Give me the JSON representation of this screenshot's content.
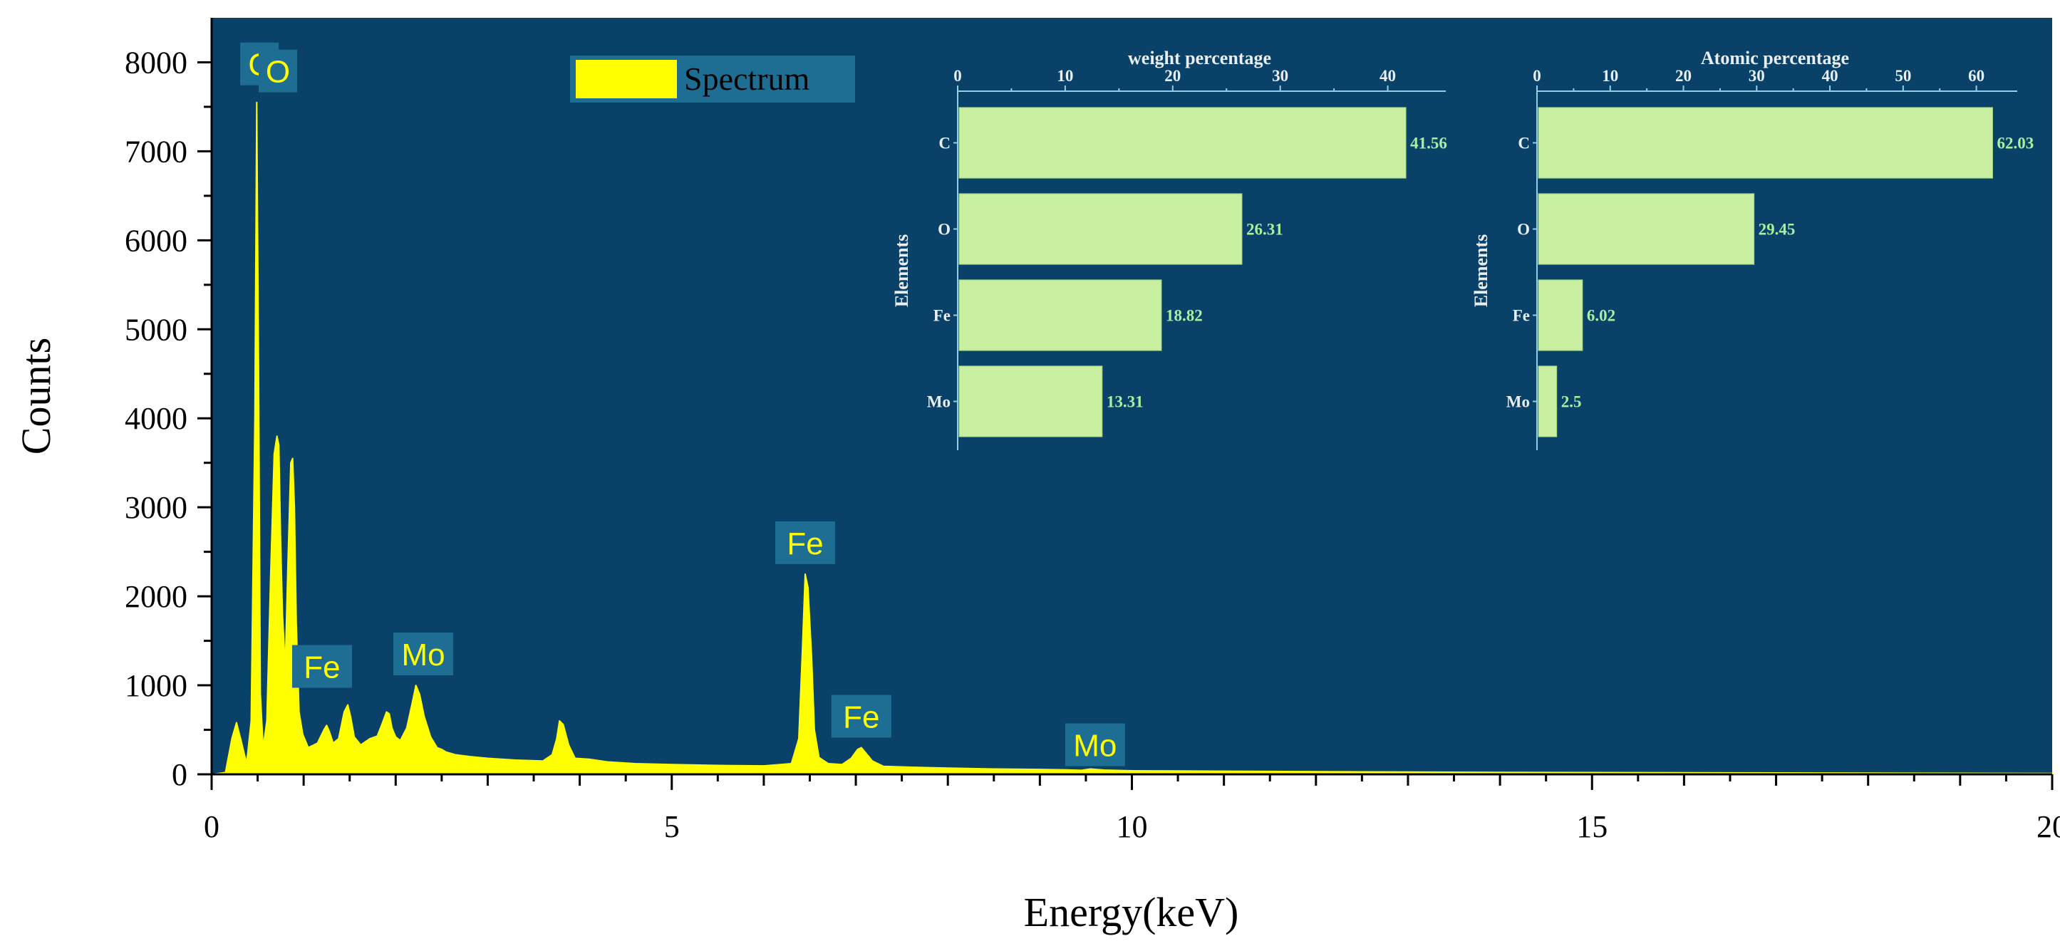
{
  "colors": {
    "plot_background": "#0a4169",
    "spectrum_fill": "#ffff00",
    "label_box": "#1e6e94",
    "inset_bar": "#c8f0a0",
    "inset_value": "#a8f0a0",
    "page_background": "#ffffff"
  },
  "chart_data": [
    {
      "type": "area",
      "title": "",
      "xlabel": "Energy(keV)",
      "ylabel": "Counts",
      "xlim": [
        0,
        20
      ],
      "ylim": [
        0,
        8500
      ],
      "xticks": [
        0,
        5,
        10,
        15,
        20
      ],
      "yticks": [
        0,
        1000,
        2000,
        3000,
        4000,
        5000,
        6000,
        7000,
        8000
      ],
      "legend": {
        "label": "Spectrum",
        "position": "top-center"
      },
      "series": [
        {
          "name": "Spectrum",
          "x": [
            0.0,
            0.15,
            0.22,
            0.27,
            0.32,
            0.38,
            0.43,
            0.47,
            0.49,
            0.51,
            0.53,
            0.56,
            0.6,
            0.64,
            0.68,
            0.71,
            0.73,
            0.75,
            0.77,
            0.8,
            0.83,
            0.86,
            0.88,
            0.9,
            0.92,
            0.95,
            0.99,
            1.05,
            1.15,
            1.22,
            1.25,
            1.28,
            1.32,
            1.38,
            1.44,
            1.48,
            1.51,
            1.55,
            1.62,
            1.72,
            1.8,
            1.85,
            1.9,
            1.93,
            1.96,
            2.0,
            2.05,
            2.12,
            2.18,
            2.22,
            2.26,
            2.31,
            2.38,
            2.45,
            2.5,
            2.55,
            2.65,
            2.8,
            3.0,
            3.3,
            3.6,
            3.7,
            3.75,
            3.78,
            3.82,
            3.88,
            3.95,
            4.1,
            4.3,
            4.6,
            5.0,
            5.5,
            6.0,
            6.3,
            6.38,
            6.42,
            6.45,
            6.48,
            6.52,
            6.55,
            6.6,
            6.7,
            6.85,
            6.95,
            7.02,
            7.06,
            7.1,
            7.18,
            7.3,
            7.6,
            8.0,
            8.5,
            9.0,
            9.3,
            9.45,
            9.55,
            9.7,
            10.0,
            11.0,
            12.0,
            13.0,
            14.0,
            15.0,
            16.0,
            17.0,
            18.0,
            19.0,
            20.0
          ],
          "values": [
            0,
            20,
            400,
            580,
            380,
            120,
            600,
            4000,
            7550,
            4500,
            900,
            300,
            600,
            2200,
            3600,
            3800,
            3700,
            2600,
            1800,
            1200,
            2400,
            3500,
            3550,
            3000,
            1700,
            700,
            450,
            300,
            350,
            500,
            550,
            480,
            350,
            400,
            700,
            780,
            650,
            420,
            330,
            400,
            430,
            560,
            700,
            680,
            520,
            420,
            380,
            520,
            800,
            1000,
            900,
            650,
            420,
            300,
            280,
            250,
            220,
            200,
            180,
            160,
            150,
            220,
            400,
            600,
            560,
            330,
            180,
            170,
            140,
            120,
            110,
            100,
            95,
            120,
            400,
            1400,
            2250,
            2100,
            1300,
            500,
            190,
            120,
            110,
            180,
            280,
            300,
            250,
            150,
            90,
            80,
            70,
            60,
            55,
            50,
            45,
            60,
            48,
            40,
            35,
            30,
            26,
            22,
            20,
            18,
            16,
            14,
            12,
            10
          ]
        }
      ],
      "peak_labels": [
        {
          "text": "C",
          "energy": 0.52
        },
        {
          "text": "O",
          "energy": 0.72
        },
        {
          "text": "Fe",
          "energy": 1.2
        },
        {
          "text": "Mo",
          "energy": 2.3
        },
        {
          "text": "Fe",
          "energy": 6.45
        },
        {
          "text": "Fe",
          "energy": 7.06
        },
        {
          "text": "Mo",
          "energy": 9.6
        }
      ]
    },
    {
      "type": "bar",
      "orientation": "horizontal",
      "title": "weight percentage",
      "xlabel": "",
      "ylabel": "Elements",
      "categories": [
        "C",
        "O",
        "Fe",
        "Mo"
      ],
      "values": [
        41.56,
        26.31,
        18.82,
        13.31
      ],
      "value_labels": [
        "41.56",
        "26.31",
        "18.82",
        "13.31"
      ],
      "xlim": [
        0,
        45
      ],
      "xticks": [
        0,
        10,
        20,
        30,
        40
      ]
    },
    {
      "type": "bar",
      "orientation": "horizontal",
      "title": "Atomic percentage",
      "xlabel": "",
      "ylabel": "Elements",
      "categories": [
        "C",
        "O",
        "Fe",
        "Mo"
      ],
      "values": [
        62.03,
        29.45,
        6.02,
        2.5
      ],
      "value_labels": [
        "62.03",
        "29.45",
        "6.02",
        "2.5"
      ],
      "xlim": [
        0,
        65
      ],
      "xticks": [
        0,
        10,
        20,
        30,
        40,
        50,
        60
      ]
    }
  ]
}
